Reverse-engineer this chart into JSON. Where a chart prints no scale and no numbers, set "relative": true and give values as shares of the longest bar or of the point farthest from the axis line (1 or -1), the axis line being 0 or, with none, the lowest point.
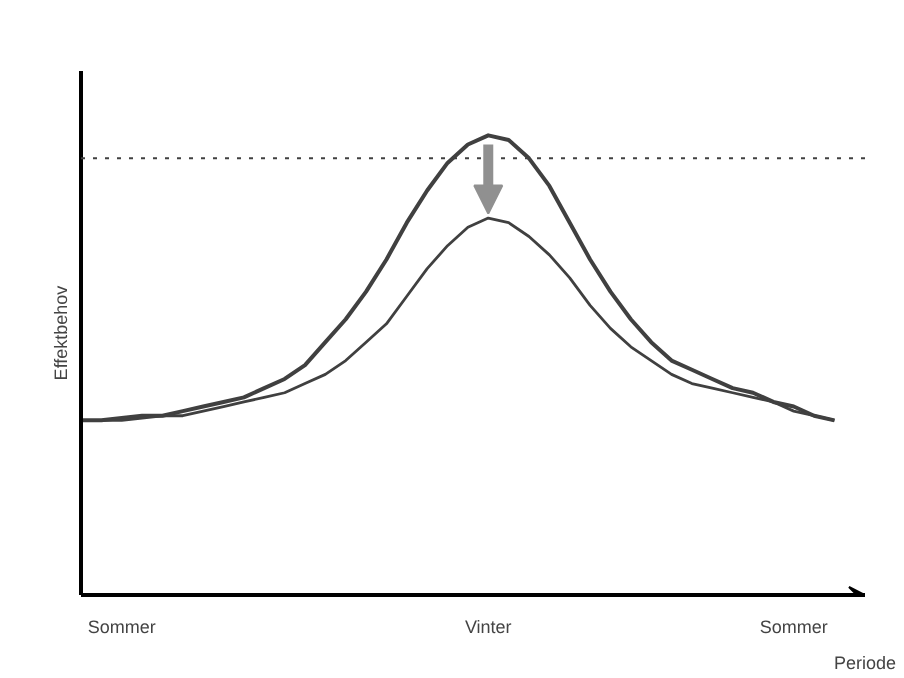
{
  "chart_data": {
    "type": "line",
    "relative": true,
    "xlabel": "Periode",
    "ylabel": "Effektbehov",
    "categories": [
      null,
      null,
      "Sommer",
      null,
      null,
      null,
      null,
      null,
      null,
      null,
      null,
      null,
      null,
      null,
      null,
      null,
      null,
      null,
      null,
      null,
      "Vinter",
      null,
      null,
      null,
      null,
      null,
      null,
      null,
      null,
      null,
      null,
      null,
      null,
      null,
      null,
      "Sommer",
      null,
      null
    ],
    "grid": false,
    "marker": "none",
    "line_style": "solid",
    "series": [
      {
        "color": "#404040",
        "values": [
          0.38,
          0.38,
          0.385,
          0.39,
          0.39,
          0.4,
          0.41,
          0.42,
          0.43,
          0.45,
          0.47,
          0.5,
          0.55,
          0.6,
          0.66,
          0.73,
          0.81,
          0.88,
          0.94,
          0.98,
          1.0,
          0.99,
          0.95,
          0.89,
          0.81,
          0.73,
          0.66,
          0.6,
          0.55,
          0.51,
          0.49,
          0.47,
          0.45,
          0.44,
          0.42,
          0.41,
          0.39,
          0.38
        ]
      },
      {
        "color": "#404040",
        "values": [
          0.38,
          0.38,
          0.38,
          0.385,
          0.39,
          0.39,
          0.4,
          0.41,
          0.42,
          0.43,
          0.44,
          0.46,
          0.48,
          0.51,
          0.55,
          0.59,
          0.65,
          0.71,
          0.76,
          0.8,
          0.82,
          0.81,
          0.78,
          0.74,
          0.69,
          0.63,
          0.58,
          0.54,
          0.51,
          0.48,
          0.46,
          0.45,
          0.44,
          0.43,
          0.42,
          0.4,
          0.39,
          0.38
        ]
      }
    ],
    "ref_lines": [
      {
        "axis": "y",
        "value": 0.95,
        "color": "#404040",
        "line_style": "dotted"
      }
    ]
  }
}
